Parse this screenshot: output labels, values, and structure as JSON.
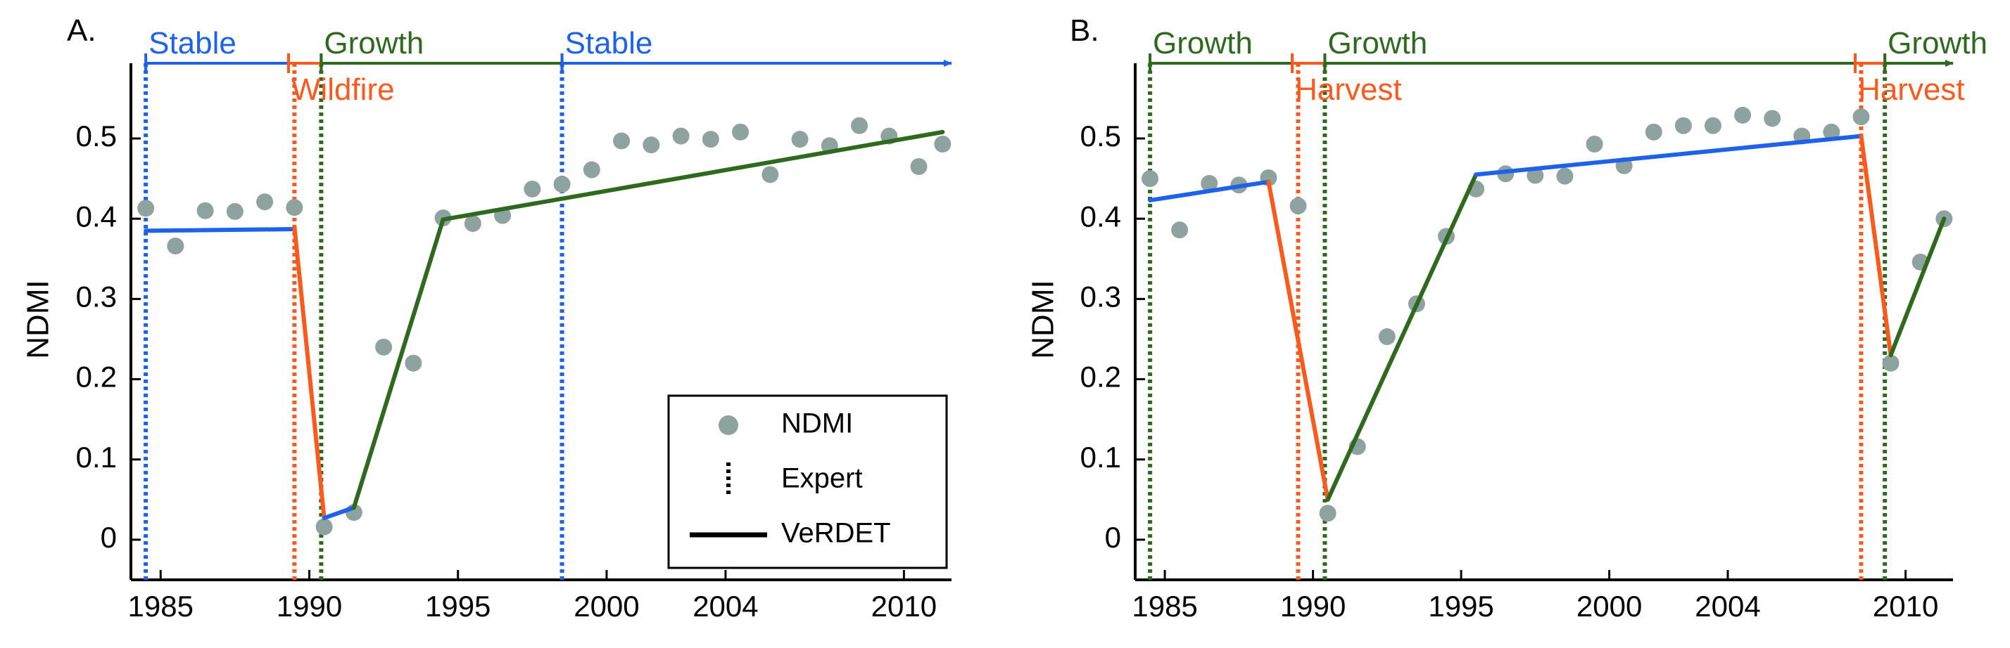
{
  "colors": {
    "stable": "#1f62ea",
    "disturbance": "#fa5a1b",
    "growth": "#2d6a1e",
    "ndmi_point": "#8ea39f",
    "axis": "#000000"
  },
  "chart_data": [
    {
      "type": "scatter",
      "panel_label": "A.",
      "ylabel": "NDMI",
      "xlabel": "",
      "xlim": [
        1984,
        2011.6
      ],
      "ylim": [
        -0.05,
        0.62
      ],
      "x_ticks": [
        1985,
        1990,
        1995,
        2000,
        2004,
        2010
      ],
      "x_tick_labels": [
        "1985",
        "1990",
        "1995",
        "2000",
        "2004",
        "2010"
      ],
      "y_ticks": [
        0,
        0.1,
        0.2,
        0.3,
        0.4,
        0.5
      ],
      "y_tick_labels": [
        "0",
        "0.1",
        "0.2",
        "0.3",
        "0.4",
        "0.5"
      ],
      "ndmi_points": [
        [
          1984.5,
          0.413
        ],
        [
          1985.5,
          0.366
        ],
        [
          1986.5,
          0.41
        ],
        [
          1987.5,
          0.409
        ],
        [
          1988.5,
          0.421
        ],
        [
          1989.5,
          0.414
        ],
        [
          1990.5,
          0.016
        ],
        [
          1991.5,
          0.034
        ],
        [
          1992.5,
          0.24
        ],
        [
          1993.5,
          0.22
        ],
        [
          1994.5,
          0.401
        ],
        [
          1995.5,
          0.394
        ],
        [
          1996.5,
          0.404
        ],
        [
          1997.5,
          0.437
        ],
        [
          1998.5,
          0.443
        ],
        [
          1999.5,
          0.461
        ],
        [
          2000.5,
          0.497
        ],
        [
          2001.5,
          0.492
        ],
        [
          2002.5,
          0.503
        ],
        [
          2003.5,
          0.499
        ],
        [
          2004.5,
          0.508
        ],
        [
          2005.5,
          0.455
        ],
        [
          2006.5,
          0.499
        ],
        [
          2007.5,
          0.491
        ],
        [
          2008.5,
          0.516
        ],
        [
          2009.5,
          0.503
        ],
        [
          2010.5,
          0.465
        ],
        [
          2011.3,
          0.493
        ]
      ],
      "verdet_segments": [
        {
          "kind": "stable",
          "points": [
            [
              1984.5,
              0.385
            ],
            [
              1989.5,
              0.387
            ]
          ]
        },
        {
          "kind": "disturbance",
          "points": [
            [
              1989.5,
              0.39
            ],
            [
              1990.5,
              0.027
            ]
          ]
        },
        {
          "kind": "stable",
          "points": [
            [
              1990.5,
              0.027
            ],
            [
              1991.5,
              0.04
            ]
          ]
        },
        {
          "kind": "growth",
          "points": [
            [
              1991.5,
              0.04
            ],
            [
              1994.5,
              0.399
            ]
          ]
        },
        {
          "kind": "growth",
          "points": [
            [
              1994.5,
              0.399
            ],
            [
              2011.3,
              0.508
            ]
          ]
        }
      ],
      "expert_lines": [
        {
          "kind": "stable",
          "x": 1984.5
        },
        {
          "kind": "disturbance",
          "x": 1989.5
        },
        {
          "kind": "growth",
          "x": 1990.4
        },
        {
          "kind": "stable",
          "x": 1998.5
        }
      ],
      "period_bars": [
        {
          "kind": "stable",
          "label": "Stable",
          "x0": 1984.5,
          "x1": 1989.3,
          "label_below": false,
          "arrow": false
        },
        {
          "kind": "disturbance",
          "label": "Wildfire",
          "x0": 1989.3,
          "x1": 1990.4,
          "label_below": true,
          "arrow": false
        },
        {
          "kind": "growth",
          "label": "Growth",
          "x0": 1990.4,
          "x1": 1998.5,
          "label_below": false,
          "arrow": false
        },
        {
          "kind": "stable",
          "label": "Stable",
          "x0": 1998.5,
          "x1": 2011.6,
          "label_below": false,
          "arrow": true
        }
      ],
      "legend": {
        "location": "lower-right",
        "entries": [
          {
            "label": "NDMI",
            "style": "point"
          },
          {
            "label": "Expert",
            "style": "dotted"
          },
          {
            "label": "VeRDET",
            "style": "solid"
          }
        ]
      }
    },
    {
      "type": "scatter",
      "panel_label": "B.",
      "ylabel": "NDMI",
      "xlabel": "",
      "xlim": [
        1984,
        2011.6
      ],
      "ylim": [
        -0.05,
        0.62
      ],
      "x_ticks": [
        1985,
        1990,
        1995,
        2000,
        2004,
        2010
      ],
      "x_tick_labels": [
        "1985",
        "1990",
        "1995",
        "2000",
        "2004",
        "2010"
      ],
      "y_ticks": [
        0,
        0.1,
        0.2,
        0.3,
        0.4,
        0.5
      ],
      "y_tick_labels": [
        "0",
        "0.1",
        "0.2",
        "0.3",
        "0.4",
        "0.5"
      ],
      "ndmi_points": [
        [
          1984.5,
          0.45
        ],
        [
          1985.5,
          0.386
        ],
        [
          1986.5,
          0.444
        ],
        [
          1987.5,
          0.442
        ],
        [
          1988.5,
          0.451
        ],
        [
          1989.5,
          0.416
        ],
        [
          1990.5,
          0.033
        ],
        [
          1991.5,
          0.116
        ],
        [
          1992.5,
          0.253
        ],
        [
          1993.5,
          0.294
        ],
        [
          1994.5,
          0.378
        ],
        [
          1995.5,
          0.437
        ],
        [
          1996.5,
          0.456
        ],
        [
          1997.5,
          0.454
        ],
        [
          1998.5,
          0.453
        ],
        [
          1999.5,
          0.493
        ],
        [
          2000.5,
          0.466
        ],
        [
          2001.5,
          0.508
        ],
        [
          2002.5,
          0.516
        ],
        [
          2003.5,
          0.516
        ],
        [
          2004.5,
          0.529
        ],
        [
          2005.5,
          0.525
        ],
        [
          2006.5,
          0.503
        ],
        [
          2007.5,
          0.508
        ],
        [
          2008.5,
          0.527
        ],
        [
          2009.5,
          0.22
        ],
        [
          2010.5,
          0.346
        ],
        [
          2011.3,
          0.4
        ]
      ],
      "verdet_segments": [
        {
          "kind": "stable",
          "points": [
            [
              1984.5,
              0.423
            ],
            [
              1988.5,
              0.446
            ]
          ]
        },
        {
          "kind": "disturbance",
          "points": [
            [
              1988.5,
              0.446
            ],
            [
              1990.5,
              0.05
            ]
          ]
        },
        {
          "kind": "growth",
          "points": [
            [
              1990.5,
              0.05
            ],
            [
              1995.5,
              0.455
            ]
          ]
        },
        {
          "kind": "stable",
          "points": [
            [
              1995.5,
              0.455
            ],
            [
              2008.5,
              0.503
            ]
          ]
        },
        {
          "kind": "disturbance",
          "points": [
            [
              2008.5,
              0.503
            ],
            [
              2009.5,
              0.23
            ]
          ]
        },
        {
          "kind": "growth",
          "points": [
            [
              2009.5,
              0.23
            ],
            [
              2011.3,
              0.4
            ]
          ]
        }
      ],
      "expert_lines": [
        {
          "kind": "growth",
          "x": 1984.5
        },
        {
          "kind": "disturbance",
          "x": 1989.5
        },
        {
          "kind": "growth",
          "x": 1990.4
        },
        {
          "kind": "disturbance",
          "x": 2008.5
        },
        {
          "kind": "growth",
          "x": 2009.3
        }
      ],
      "period_bars": [
        {
          "kind": "growth",
          "label": "Growth",
          "x0": 1984.5,
          "x1": 1989.3,
          "label_below": false,
          "arrow": false
        },
        {
          "kind": "disturbance",
          "label": "Harvest",
          "x0": 1989.3,
          "x1": 1990.4,
          "label_below": true,
          "arrow": false
        },
        {
          "kind": "growth",
          "label": "Growth",
          "x0": 1990.4,
          "x1": 2008.3,
          "label_below": false,
          "arrow": false
        },
        {
          "kind": "disturbance",
          "label": "Harvest",
          "x0": 2008.3,
          "x1": 2009.3,
          "label_below": true,
          "arrow": false
        },
        {
          "kind": "growth",
          "label": "Growth",
          "x0": 2009.3,
          "x1": 2011.6,
          "label_below": false,
          "arrow": true
        }
      ]
    }
  ]
}
